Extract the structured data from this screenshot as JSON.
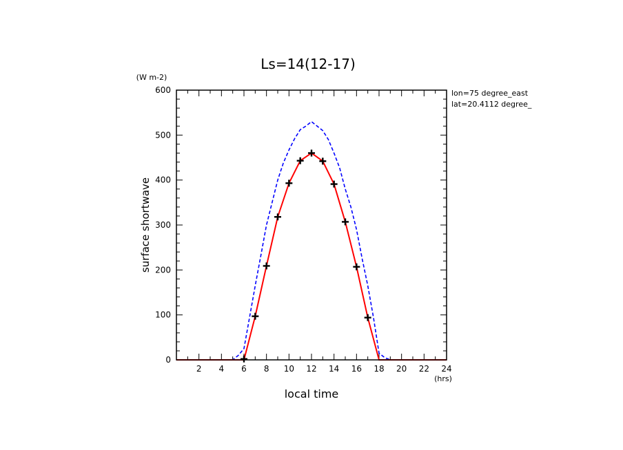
{
  "chart_data": {
    "type": "line",
    "title": "Ls=14(12-17)",
    "xlabel": "local time",
    "ylabel": "surface shortwave",
    "x_unit": "(hrs)",
    "y_unit": "(W m-2)",
    "annotations": [
      "lon=75 degree_east",
      "lat=20.4112 degree_"
    ],
    "xlim": [
      0,
      24
    ],
    "ylim": [
      0,
      600
    ],
    "x_ticks": [
      2,
      4,
      6,
      8,
      10,
      12,
      14,
      16,
      18,
      20,
      22,
      24
    ],
    "y_ticks": [
      0,
      100,
      200,
      300,
      400,
      500,
      600
    ],
    "grid": false,
    "series": [
      {
        "style": "dashed",
        "color": "#0000ff",
        "x": [
          0,
          0.5,
          1,
          1.5,
          2,
          2.5,
          3,
          3.5,
          4,
          4.5,
          5,
          5.5,
          6,
          6.5,
          7,
          7.5,
          8,
          8.5,
          9,
          9.5,
          10,
          10.5,
          11,
          11.5,
          12,
          12.5,
          13,
          13.5,
          14,
          14.5,
          15,
          15.5,
          16,
          16.5,
          17,
          17.5,
          18,
          18.5,
          19,
          19.5,
          20,
          20.5,
          21,
          21.5,
          22,
          22.5,
          23,
          23.5,
          24
        ],
        "values": [
          0,
          0,
          0,
          0,
          0,
          0,
          0,
          0,
          0,
          0,
          0,
          10,
          25,
          95,
          165,
          232,
          300,
          350,
          400,
          438,
          467,
          492,
          512,
          520,
          530,
          520,
          510,
          490,
          460,
          427,
          380,
          340,
          290,
          225,
          165,
          95,
          15,
          5,
          0,
          0,
          0,
          0,
          0,
          0,
          0,
          0,
          0,
          0,
          0
        ]
      },
      {
        "style": "solid",
        "color": "#ff0000",
        "x": [
          0,
          1,
          2,
          3,
          4,
          5,
          6,
          7,
          8,
          9,
          10,
          11,
          12,
          13,
          14,
          15,
          16,
          17,
          18,
          19,
          20,
          21,
          22,
          23,
          24
        ],
        "values": [
          0,
          0,
          0,
          0,
          0,
          0,
          0,
          97,
          209,
          318,
          393,
          443,
          460,
          442,
          391,
          307,
          207,
          94,
          0,
          0,
          0,
          0,
          0,
          0,
          0
        ]
      },
      {
        "style": "markers",
        "marker": "plus",
        "color": "#000000",
        "x": [
          6,
          7,
          8,
          9,
          10,
          11,
          12,
          13,
          14,
          15,
          16,
          17
        ],
        "values": [
          2,
          97,
          209,
          318,
          393,
          443,
          460,
          442,
          391,
          307,
          207,
          94
        ]
      }
    ]
  }
}
